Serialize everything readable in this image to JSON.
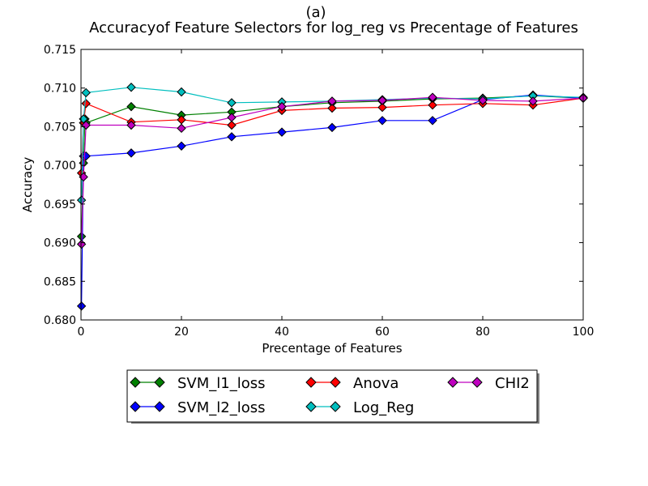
{
  "chart_data": {
    "type": "line",
    "panel_label": "(a)",
    "title": "Accuracyof Feature Selectors for log_reg vs Precentage of Features",
    "xlabel": "Precentage of Features",
    "ylabel": "Accuracy",
    "xlim": [
      0,
      100
    ],
    "ylim": [
      0.68,
      0.715
    ],
    "x_ticks": [
      "0",
      "20",
      "40",
      "60",
      "80",
      "100"
    ],
    "y_ticks": [
      "0.680",
      "0.685",
      "0.690",
      "0.695",
      "0.700",
      "0.705",
      "0.710",
      "0.715"
    ],
    "x_tick_values": [
      0,
      20,
      40,
      60,
      80,
      100
    ],
    "y_tick_values": [
      0.68,
      0.685,
      0.69,
      0.695,
      0.7,
      0.705,
      0.71,
      0.715
    ],
    "grid": false,
    "legend_position": "below-plot",
    "series": [
      {
        "name": "SVM_l1_loss",
        "color": "#008000",
        "points": [
          [
            0.1,
            0.6908
          ],
          [
            0.5,
            0.7003
          ],
          [
            0.8,
            0.706
          ],
          [
            1,
            0.7055
          ],
          [
            10,
            0.7076
          ],
          [
            20,
            0.7065
          ],
          [
            30,
            0.7069
          ],
          [
            40,
            0.7076
          ],
          [
            50,
            0.7081
          ],
          [
            60,
            0.7083
          ],
          [
            70,
            0.7086
          ],
          [
            80,
            0.7087
          ],
          [
            90,
            0.709
          ],
          [
            100,
            0.7087
          ]
        ]
      },
      {
        "name": "SVM_l2_loss",
        "color": "#0000ff",
        "points": [
          [
            0.1,
            0.6818
          ],
          [
            0.5,
            0.7012
          ],
          [
            1,
            0.7012
          ],
          [
            10,
            0.7016
          ],
          [
            20,
            0.7025
          ],
          [
            30,
            0.7037
          ],
          [
            40,
            0.7043
          ],
          [
            50,
            0.7049
          ],
          [
            60,
            0.7058
          ],
          [
            70,
            0.7058
          ],
          [
            80,
            0.7085
          ],
          [
            90,
            0.7091
          ],
          [
            100,
            0.7087
          ]
        ]
      },
      {
        "name": "Anova",
        "color": "#ff0000",
        "points": [
          [
            0.1,
            0.699
          ],
          [
            0.5,
            0.7055
          ],
          [
            1,
            0.708
          ],
          [
            10,
            0.7056
          ],
          [
            20,
            0.7059
          ],
          [
            30,
            0.7052
          ],
          [
            40,
            0.7071
          ],
          [
            50,
            0.7074
          ],
          [
            60,
            0.7075
          ],
          [
            70,
            0.7078
          ],
          [
            80,
            0.708
          ],
          [
            90,
            0.7078
          ],
          [
            100,
            0.7087
          ]
        ]
      },
      {
        "name": "Log_Reg",
        "color": "#00bfbf",
        "points": [
          [
            0.1,
            0.6955
          ],
          [
            0.5,
            0.706
          ],
          [
            1,
            0.7094
          ],
          [
            10,
            0.7101
          ],
          [
            20,
            0.7095
          ],
          [
            30,
            0.7081
          ],
          [
            40,
            0.7082
          ],
          [
            50,
            0.7083
          ],
          [
            60,
            0.7085
          ],
          [
            70,
            0.7087
          ],
          [
            80,
            0.7086
          ],
          [
            90,
            0.709
          ],
          [
            100,
            0.7088
          ]
        ]
      },
      {
        "name": "CHI2",
        "color": "#bf00bf",
        "points": [
          [
            0.1,
            0.6898
          ],
          [
            0.5,
            0.6985
          ],
          [
            1,
            0.7052
          ],
          [
            10,
            0.7052
          ],
          [
            20,
            0.7048
          ],
          [
            30,
            0.7062
          ],
          [
            40,
            0.7076
          ],
          [
            50,
            0.7083
          ],
          [
            60,
            0.7084
          ],
          [
            70,
            0.7088
          ],
          [
            80,
            0.7084
          ],
          [
            90,
            0.7083
          ],
          [
            100,
            0.7087
          ]
        ]
      }
    ]
  },
  "legend": [
    {
      "label": "SVM_l1_loss",
      "color": "#008000"
    },
    {
      "label": "Anova",
      "color": "#ff0000"
    },
    {
      "label": "CHI2",
      "color": "#bf00bf"
    },
    {
      "label": "SVM_l2_loss",
      "color": "#0000ff"
    },
    {
      "label": "Log_Reg",
      "color": "#00bfbf"
    }
  ]
}
